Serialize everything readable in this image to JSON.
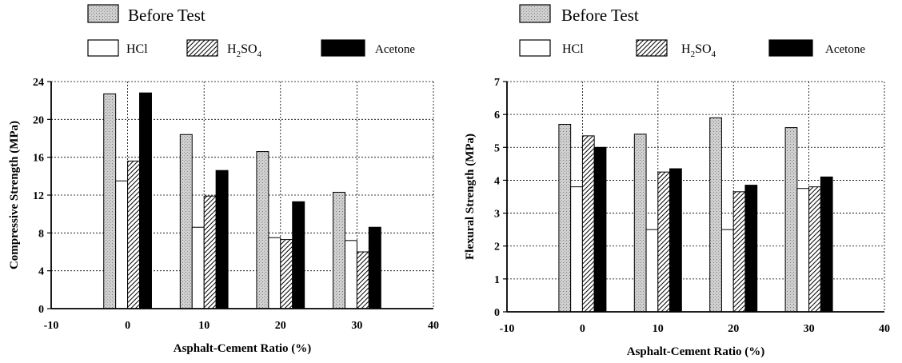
{
  "chart_data": [
    {
      "type": "bar",
      "title": "",
      "xlabel": "Asphalt-Cement Ratio (%)",
      "ylabel": "Compressive Strength (MPa)",
      "categories": [
        "0",
        "10",
        "20",
        "30"
      ],
      "category_x": [
        0,
        10,
        20,
        30
      ],
      "xlim": [
        -10,
        40
      ],
      "xticks": [
        "-10",
        "0",
        "10",
        "20",
        "30",
        "40"
      ],
      "ylim": [
        0,
        24
      ],
      "yticks": [
        "0",
        "4",
        "8",
        "12",
        "16",
        "20",
        "24"
      ],
      "grid": true,
      "legend": "top",
      "series": [
        {
          "name": "Before Test",
          "values": [
            22.7,
            18.4,
            16.6,
            12.3
          ]
        },
        {
          "name": "HCl",
          "values": [
            13.5,
            8.6,
            7.5,
            7.2
          ]
        },
        {
          "name": "H2SO4",
          "values": [
            15.6,
            11.9,
            7.3,
            6.0
          ]
        },
        {
          "name": "Acetone",
          "values": [
            22.8,
            14.6,
            11.3,
            8.6
          ]
        }
      ]
    },
    {
      "type": "bar",
      "title": "",
      "xlabel": "Asphalt-Cement Ratio (%)",
      "ylabel": "Flexural Strength (MPa)",
      "categories": [
        "0",
        "10",
        "20",
        "30"
      ],
      "category_x": [
        0,
        10,
        20,
        30
      ],
      "xlim": [
        -10,
        40
      ],
      "xticks": [
        "-10",
        "0",
        "10",
        "20",
        "30",
        "40"
      ],
      "ylim": [
        0,
        7
      ],
      "yticks": [
        "0",
        "1",
        "2",
        "3",
        "4",
        "5",
        "6",
        "7"
      ],
      "grid": true,
      "legend": "top",
      "series": [
        {
          "name": "Before Test",
          "values": [
            5.7,
            5.4,
            5.9,
            5.6
          ]
        },
        {
          "name": "HCl",
          "values": [
            3.8,
            2.5,
            2.5,
            3.75
          ]
        },
        {
          "name": "H2SO4",
          "values": [
            5.35,
            4.25,
            3.65,
            3.8
          ]
        },
        {
          "name": "Acetone",
          "values": [
            5.0,
            4.35,
            3.85,
            4.1
          ]
        }
      ]
    }
  ],
  "legend": {
    "before_label": "Before Test",
    "hcl_label": "HCl",
    "h2so4_main": "H",
    "h2so4_sub1": "2",
    "h2so4_mid": "SO",
    "h2so4_sub2": "4",
    "acetone_label": "Acetone"
  },
  "colors": {
    "before_fill": "#c8c8c8",
    "hcl_fill": "#ffffff",
    "h2so4_stripe": "#000000",
    "acetone_fill": "#000000",
    "grid": "#000000"
  }
}
